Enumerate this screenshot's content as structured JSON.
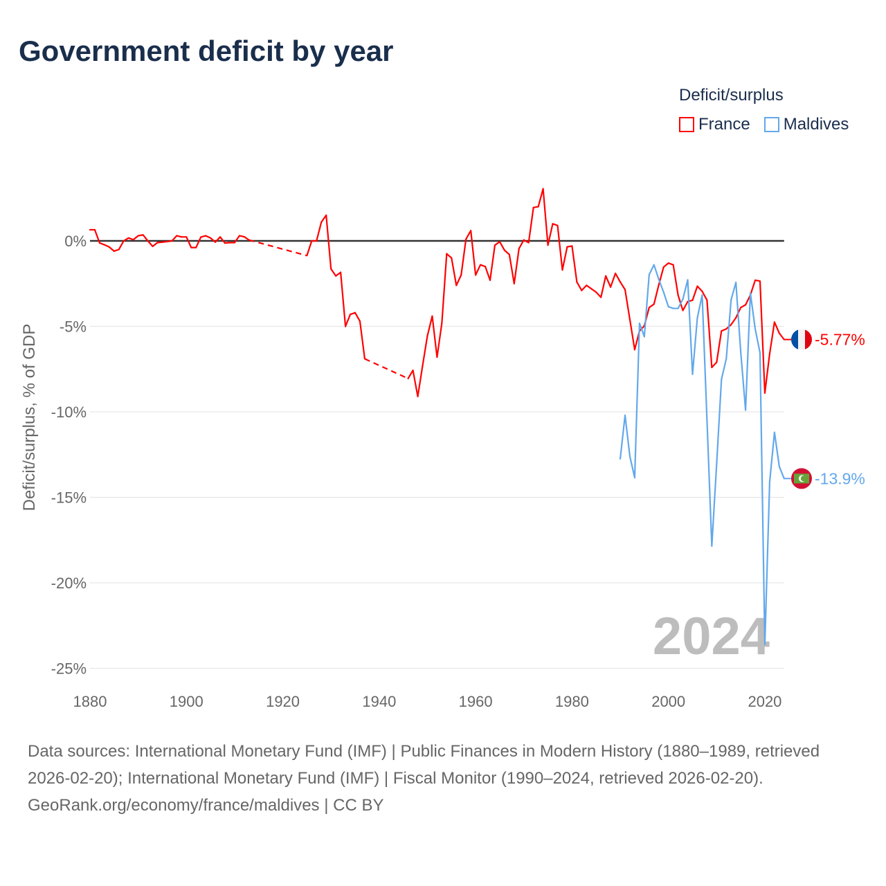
{
  "title": "Government deficit by year",
  "legend": {
    "title": "Deficit/surplus",
    "items": [
      {
        "name": "France",
        "color": "#ff0000"
      },
      {
        "name": "Maldives",
        "color": "#62a8eb"
      }
    ]
  },
  "footer": {
    "sources": "Data sources: International Monetary Fund (IMF) | Public Finances in Modern History (1880–1989, retrieved 2026-02-20); International Monetary Fund (IMF) | Fiscal Monitor (1990–2024, retrieved 2026-02-20).",
    "credit": "GeoRank.org/economy/france/maldives | CC BY"
  },
  "chart_data": {
    "type": "line",
    "title": "Government deficit by year",
    "xlabel": "",
    "ylabel": "Deficit/surplus, % of GDP",
    "xlim": [
      1880,
      2024
    ],
    "ylim": [
      -25,
      3.5
    ],
    "xticks": [
      1880,
      1900,
      1920,
      1940,
      1960,
      1980,
      2000,
      2020
    ],
    "yticks": [
      0,
      -5,
      -10,
      -15,
      -20,
      -25
    ],
    "ytick_labels": [
      "0%",
      "-5%",
      "-10%",
      "-15%",
      "-20%",
      "-25%"
    ],
    "year_label": "2024",
    "series": [
      {
        "name": "France",
        "color": "#ff0000",
        "end_label": "-5.77%",
        "start_year": 1880,
        "values": [
          0.65,
          0.65,
          -0.12,
          -0.23,
          -0.36,
          -0.6,
          -0.5,
          0,
          0.17,
          0.07,
          0.3,
          0.35,
          0,
          -0.32,
          -0.1,
          -0.07,
          -0.04,
          0,
          0.3,
          0.23,
          0.23,
          -0.39,
          -0.39,
          0.22,
          0.3,
          0.17,
          -0.07,
          0.23,
          -0.13,
          -0.1,
          -0.1,
          0.3,
          0.24,
          0.05,
          null,
          null,
          null,
          null,
          null,
          null,
          null,
          null,
          null,
          null,
          null,
          -0.86,
          0,
          0,
          1.1,
          1.5,
          -1.64,
          -2.05,
          -1.84,
          -5.0,
          -4.3,
          -4.2,
          -4.7,
          -6.9,
          null,
          null,
          null,
          null,
          null,
          null,
          null,
          null,
          -8.05,
          -7.57,
          -9.1,
          -7.3,
          -5.55,
          -4.4,
          -6.8,
          -4.8,
          -0.75,
          -1.0,
          -2.6,
          -2.0,
          0.1,
          0.6,
          -2.0,
          -1.4,
          -1.5,
          -2.3,
          -0.25,
          -0.05,
          -0.55,
          -0.8,
          -2.5,
          -0.45,
          0.05,
          -0.1,
          1.95,
          2.0,
          3.05,
          -0.25,
          1.0,
          0.9,
          -1.7,
          -0.35,
          -0.3,
          -2.4,
          -2.9,
          -2.6,
          -2.8,
          -3.0,
          -3.3,
          -2.05,
          -2.7,
          -1.9,
          -2.4,
          -2.85,
          -4.6,
          -6.36,
          -5.27,
          -4.97,
          -3.9,
          -3.7,
          -2.57,
          -1.53,
          -1.3,
          -1.4,
          -3.17,
          -4.07,
          -3.55,
          -3.47,
          -2.65,
          -2.95,
          -3.47,
          -7.4,
          -7.1,
          -5.27,
          -5.15,
          -4.9,
          -4.5,
          -3.9,
          -3.74,
          -3.17,
          -2.3,
          -2.35,
          -8.9,
          -6.6,
          -4.75,
          -5.4,
          -5.77
        ]
      },
      {
        "name": "Maldives",
        "color": "#62a8eb",
        "end_label": "-13.9%",
        "start_year": 1990,
        "values": [
          -12.75,
          -10.2,
          -12.6,
          -13.85,
          -4.82,
          -5.6,
          -1.98,
          -1.4,
          -2.25,
          -3.0,
          -3.85,
          -3.95,
          -3.95,
          -3.4,
          -2.28,
          -7.8,
          -4.5,
          -3.17,
          -10.5,
          -17.85,
          -13.05,
          -8.1,
          -6.9,
          -3.45,
          -2.43,
          -6.5,
          -9.9,
          -3.05,
          -5.15,
          -6.55,
          -23.6,
          -14.1,
          -11.2,
          -13.2,
          -13.9
        ]
      }
    ]
  }
}
